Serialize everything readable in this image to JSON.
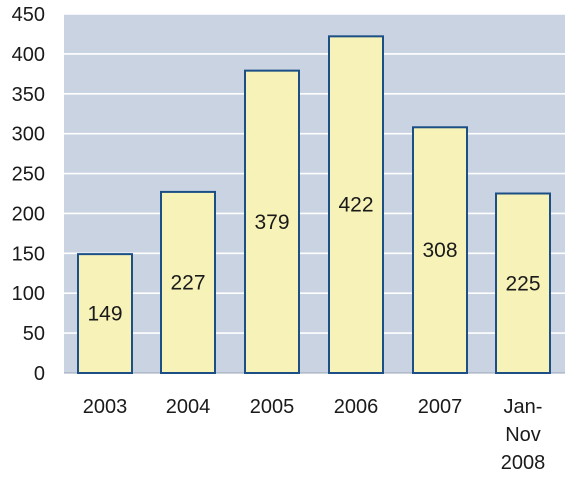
{
  "chart_data": {
    "type": "bar",
    "categories": [
      [
        "2003"
      ],
      [
        "2004"
      ],
      [
        "2005"
      ],
      [
        "2006"
      ],
      [
        "2007"
      ],
      [
        "Jan-",
        "Nov",
        "2008"
      ]
    ],
    "values": [
      149,
      227,
      379,
      422,
      308,
      225
    ],
    "data_labels": [
      "149",
      "227",
      "379",
      "422",
      "308",
      "225"
    ],
    "yticks": [
      "0",
      "50",
      "100",
      "150",
      "200",
      "250",
      "300",
      "350",
      "400",
      "450"
    ],
    "ylim": [
      0,
      450
    ],
    "grid": true,
    "title": "",
    "xlabel": "",
    "ylabel": "",
    "colors": {
      "plot_background": "#c9d3e2",
      "gridline": "#ffffff",
      "bar_fill": "#f7f3b8",
      "bar_stroke": "#1c4f86",
      "text": "#1a1a1a"
    }
  }
}
